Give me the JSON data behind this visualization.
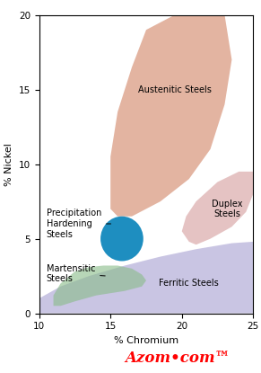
{
  "xlim": [
    10,
    25
  ],
  "ylim": [
    0,
    20
  ],
  "xlabel": "% Chromium",
  "ylabel": "% Nickel",
  "xticks": [
    10,
    15,
    20,
    25
  ],
  "yticks": [
    0,
    5,
    10,
    15,
    20
  ],
  "background_color": "#ffffff",
  "austenitic_color": "#cc7755",
  "austenitic_alpha": 0.55,
  "duplex_color": "#cc8888",
  "duplex_alpha": 0.5,
  "ferritic_color": "#9e96cc",
  "ferritic_alpha": 0.55,
  "martensitic_color": "#88bb88",
  "martensitic_alpha": 0.6,
  "ph_circle_color": "#1e8ec0",
  "ph_circle_alpha": 1.0,
  "austenitic_label": "Austenitic Steels",
  "duplex_label": "Duplex\nSteels",
  "ferritic_label": "Ferritic Steels",
  "martensitic_label": "Martensitic\nSteels",
  "ph_label": "Precipitation\nHardening\nSteels",
  "label_fontsize": 7.0,
  "axis_label_fontsize": 8.0,
  "tick_fontsize": 7.5,
  "figsize": [
    2.91,
    4.15
  ],
  "dpi": 100
}
